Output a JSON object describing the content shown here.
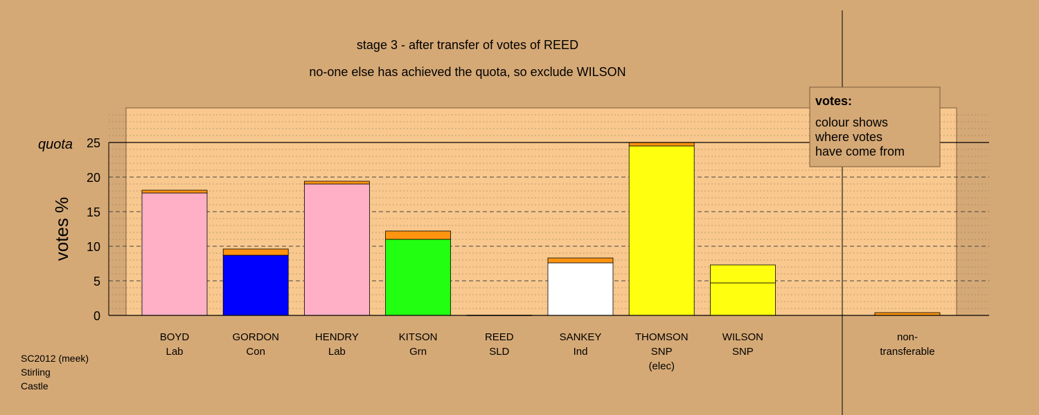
{
  "title": {
    "line1": "stage 3 - after transfer of votes of REED",
    "line2": "no-one else has achieved the quota, so exclude WILSON"
  },
  "footer": {
    "line1": "SC2012 (meek)",
    "line2": "Stirling",
    "line3": "Castle"
  },
  "legend": {
    "title": "votes:",
    "lines": [
      "colour shows",
      "where votes",
      "have come from"
    ]
  },
  "quota_label": "quota",
  "colors": {
    "background": "#d5a976",
    "plot_area": "#f8c88e",
    "transfer": "#ff9410",
    "Lab": "#ffb0c6",
    "Con": "#0000ff",
    "Grn": "#22ff10",
    "Ind": "#ffffff",
    "SNP": "#ffff10"
  },
  "chart_data": {
    "type": "bar",
    "stacked": true,
    "ylabel": "votes %",
    "ylim": [
      0,
      30
    ],
    "yticks": [
      0,
      5,
      10,
      15,
      20,
      25
    ],
    "quota": 25,
    "grid": true,
    "legend_position": "top-right",
    "categories": [
      {
        "name": "BOYD",
        "party": "Lab",
        "extra": ""
      },
      {
        "name": "GORDON",
        "party": "Con",
        "extra": ""
      },
      {
        "name": "HENDRY",
        "party": "Lab",
        "extra": ""
      },
      {
        "name": "KITSON",
        "party": "Grn",
        "extra": ""
      },
      {
        "name": "REED",
        "party": "SLD",
        "extra": ""
      },
      {
        "name": "SANKEY",
        "party": "Ind",
        "extra": ""
      },
      {
        "name": "THOMSON",
        "party": "SNP",
        "extra": "(elec)"
      },
      {
        "name": "WILSON",
        "party": "SNP",
        "extra": ""
      }
    ],
    "non_transferable": {
      "label1": "non-",
      "label2": "transferable",
      "value": 0.4
    },
    "bars": [
      {
        "segments": [
          {
            "color_key": "Lab",
            "value": 17.7
          },
          {
            "color_key": "transfer",
            "value": 0.4
          }
        ]
      },
      {
        "segments": [
          {
            "color_key": "Con",
            "value": 8.7
          },
          {
            "color_key": "transfer",
            "value": 0.9
          }
        ]
      },
      {
        "segments": [
          {
            "color_key": "Lab",
            "value": 19.0
          },
          {
            "color_key": "transfer",
            "value": 0.4
          }
        ]
      },
      {
        "segments": [
          {
            "color_key": "Grn",
            "value": 11.0
          },
          {
            "color_key": "transfer",
            "value": 1.2
          }
        ]
      },
      {
        "segments": []
      },
      {
        "segments": [
          {
            "color_key": "Ind",
            "value": 7.6
          },
          {
            "color_key": "transfer",
            "value": 0.7
          }
        ]
      },
      {
        "segments": [
          {
            "color_key": "SNP",
            "value": 24.5
          },
          {
            "color_key": "transfer",
            "value": 0.5
          }
        ]
      },
      {
        "segments": [
          {
            "color_key": "SNP",
            "value": 4.7
          },
          {
            "color_key": "SNP",
            "value": 2.6
          }
        ]
      }
    ]
  }
}
